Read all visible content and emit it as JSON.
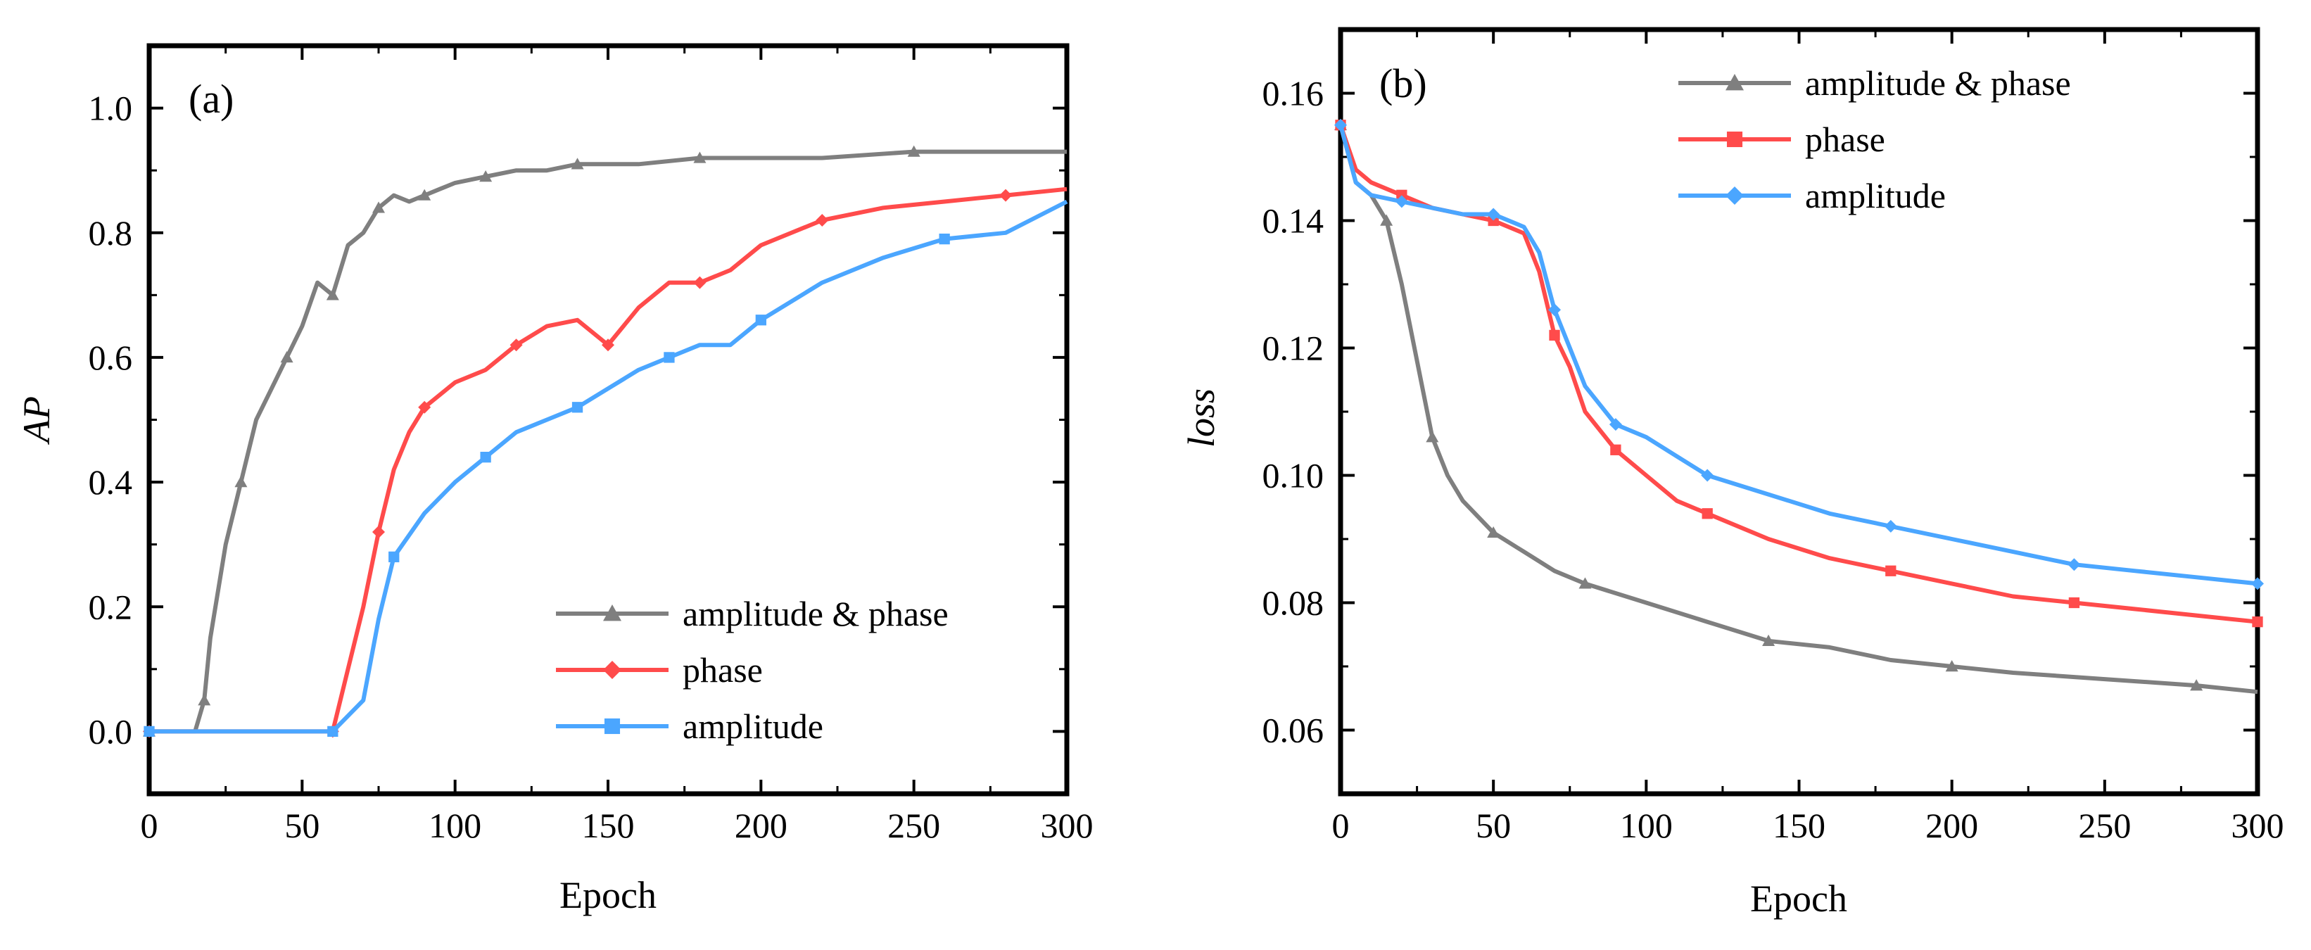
{
  "chart_data": [
    {
      "type": "line",
      "panel_label": "(a)",
      "xlabel": "Epoch",
      "ylabel": "AP",
      "xlim": [
        0,
        300
      ],
      "ylim": [
        -0.1,
        1.1
      ],
      "xticks": [
        0,
        50,
        100,
        150,
        200,
        250,
        300
      ],
      "yticks": [
        0.0,
        0.2,
        0.4,
        0.6,
        0.8,
        1.0
      ],
      "xtick_labels": [
        "0",
        "50",
        "100",
        "150",
        "200",
        "250",
        "300"
      ],
      "ytick_labels": [
        "0.0",
        "0.2",
        "0.4",
        "0.6",
        "0.8",
        "1.0"
      ],
      "grid": false,
      "legend_position": "bottom-center",
      "series": [
        {
          "name": "amplitude & phase",
          "color": "#7f7f7f",
          "marker": "triangle",
          "x": [
            0,
            10,
            15,
            18,
            20,
            25,
            30,
            35,
            40,
            45,
            50,
            55,
            60,
            65,
            70,
            75,
            80,
            85,
            90,
            95,
            100,
            110,
            120,
            130,
            140,
            150,
            160,
            180,
            200,
            220,
            250,
            280,
            300
          ],
          "y": [
            0.0,
            0.0,
            0.0,
            0.05,
            0.15,
            0.3,
            0.4,
            0.5,
            0.55,
            0.6,
            0.65,
            0.72,
            0.7,
            0.78,
            0.8,
            0.84,
            0.86,
            0.85,
            0.86,
            0.87,
            0.88,
            0.89,
            0.9,
            0.9,
            0.91,
            0.91,
            0.91,
            0.92,
            0.92,
            0.92,
            0.93,
            0.93,
            0.93
          ]
        },
        {
          "name": "phase",
          "color": "#ff4b4b",
          "marker": "diamond",
          "x": [
            0,
            20,
            40,
            60,
            65,
            70,
            75,
            80,
            85,
            90,
            100,
            110,
            120,
            130,
            140,
            150,
            160,
            170,
            180,
            190,
            200,
            220,
            240,
            260,
            280,
            300
          ],
          "y": [
            0.0,
            0.0,
            0.0,
            0.0,
            0.1,
            0.2,
            0.32,
            0.42,
            0.48,
            0.52,
            0.56,
            0.58,
            0.62,
            0.65,
            0.66,
            0.62,
            0.68,
            0.72,
            0.72,
            0.74,
            0.78,
            0.82,
            0.84,
            0.85,
            0.86,
            0.87
          ]
        },
        {
          "name": "amplitude",
          "color": "#4ba6ff",
          "marker": "square",
          "x": [
            0,
            20,
            40,
            60,
            70,
            75,
            80,
            90,
            100,
            110,
            120,
            130,
            140,
            150,
            160,
            170,
            180,
            190,
            200,
            220,
            240,
            260,
            280,
            300
          ],
          "y": [
            0.0,
            0.0,
            0.0,
            0.0,
            0.05,
            0.18,
            0.28,
            0.35,
            0.4,
            0.44,
            0.48,
            0.5,
            0.52,
            0.55,
            0.58,
            0.6,
            0.62,
            0.62,
            0.66,
            0.72,
            0.76,
            0.79,
            0.8,
            0.85
          ]
        }
      ]
    },
    {
      "type": "line",
      "panel_label": "(b)",
      "xlabel": "Epoch",
      "ylabel": "loss",
      "xlim": [
        0,
        300
      ],
      "ylim": [
        0.05,
        0.17
      ],
      "xticks": [
        0,
        50,
        100,
        150,
        200,
        250,
        300
      ],
      "yticks": [
        0.06,
        0.08,
        0.1,
        0.12,
        0.14,
        0.16
      ],
      "xtick_labels": [
        "0",
        "50",
        "100",
        "150",
        "200",
        "250",
        "300"
      ],
      "ytick_labels": [
        "0.06",
        "0.08",
        "0.10",
        "0.12",
        "0.14",
        "0.16"
      ],
      "grid": false,
      "legend_position": "top-center",
      "series": [
        {
          "name": "amplitude & phase",
          "color": "#7f7f7f",
          "marker": "triangle",
          "x": [
            0,
            5,
            10,
            15,
            20,
            25,
            30,
            35,
            40,
            50,
            60,
            70,
            80,
            100,
            120,
            140,
            160,
            180,
            200,
            220,
            250,
            280,
            300
          ],
          "y": [
            0.155,
            0.146,
            0.144,
            0.14,
            0.13,
            0.118,
            0.106,
            0.1,
            0.096,
            0.091,
            0.088,
            0.085,
            0.083,
            0.08,
            0.077,
            0.074,
            0.073,
            0.071,
            0.07,
            0.069,
            0.068,
            0.067,
            0.066
          ]
        },
        {
          "name": "phase",
          "color": "#ff4b4b",
          "marker": "square",
          "x": [
            0,
            5,
            10,
            20,
            30,
            40,
            50,
            60,
            65,
            70,
            75,
            80,
            90,
            100,
            110,
            120,
            140,
            160,
            180,
            200,
            220,
            240,
            260,
            280,
            300
          ],
          "y": [
            0.155,
            0.148,
            0.146,
            0.144,
            0.142,
            0.141,
            0.14,
            0.138,
            0.132,
            0.122,
            0.117,
            0.11,
            0.104,
            0.1,
            0.096,
            0.094,
            0.09,
            0.087,
            0.085,
            0.083,
            0.081,
            0.08,
            0.079,
            0.078,
            0.077
          ]
        },
        {
          "name": "amplitude",
          "color": "#4ba6ff",
          "marker": "diamond",
          "x": [
            0,
            5,
            10,
            20,
            30,
            40,
            50,
            60,
            65,
            70,
            75,
            80,
            90,
            100,
            110,
            120,
            140,
            160,
            180,
            200,
            220,
            240,
            260,
            280,
            300
          ],
          "y": [
            0.155,
            0.146,
            0.144,
            0.143,
            0.142,
            0.141,
            0.141,
            0.139,
            0.135,
            0.126,
            0.12,
            0.114,
            0.108,
            0.106,
            0.103,
            0.1,
            0.097,
            0.094,
            0.092,
            0.09,
            0.088,
            0.086,
            0.085,
            0.084,
            0.083
          ]
        }
      ]
    }
  ]
}
